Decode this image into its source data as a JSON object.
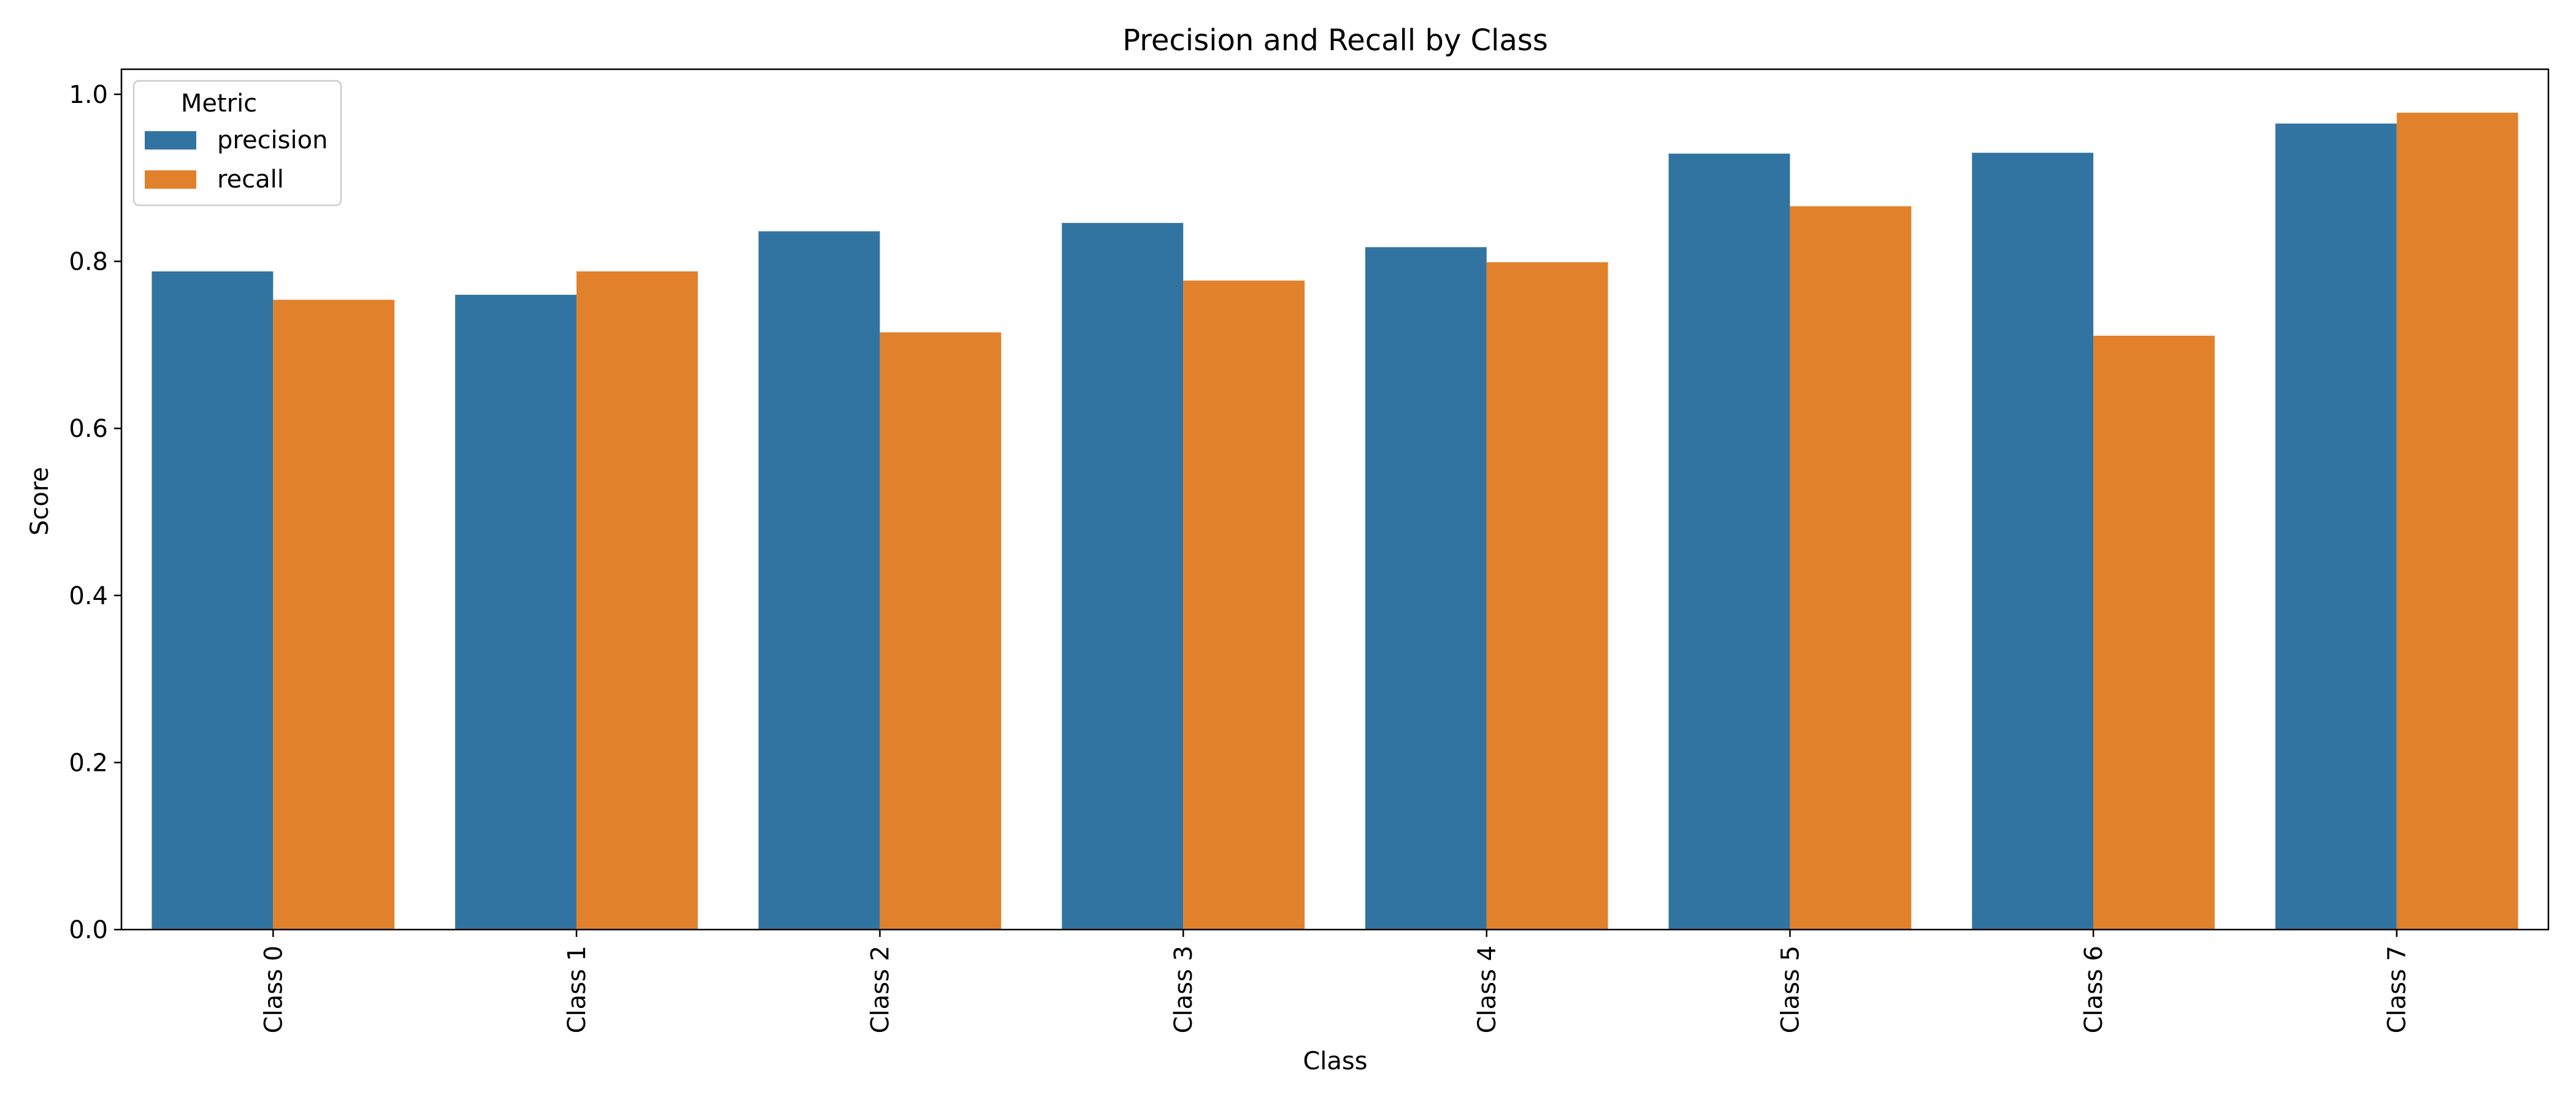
{
  "chart_data": {
    "type": "bar",
    "title": "Precision and Recall by Class",
    "xlabel": "Class",
    "ylabel": "Score",
    "ylim": [
      0,
      1.03
    ],
    "yticks": [
      0.0,
      0.2,
      0.4,
      0.6,
      0.8,
      1.0
    ],
    "ytick_labels": [
      "0.0",
      "0.2",
      "0.4",
      "0.6",
      "0.8",
      "1.0"
    ],
    "categories": [
      "Class 0",
      "Class 1",
      "Class 2",
      "Class 3",
      "Class 4",
      "Class 5",
      "Class 6",
      "Class 7"
    ],
    "legend": {
      "title": "Metric",
      "placement": "top-left"
    },
    "series": [
      {
        "name": "precision",
        "color": "#3274a1",
        "values": [
          0.788,
          0.76,
          0.836,
          0.846,
          0.817,
          0.929,
          0.93,
          0.965
        ]
      },
      {
        "name": "recall",
        "color": "#e1812c",
        "values": [
          0.754,
          0.788,
          0.715,
          0.777,
          0.799,
          0.866,
          0.711,
          0.978
        ]
      }
    ],
    "grid": false
  }
}
